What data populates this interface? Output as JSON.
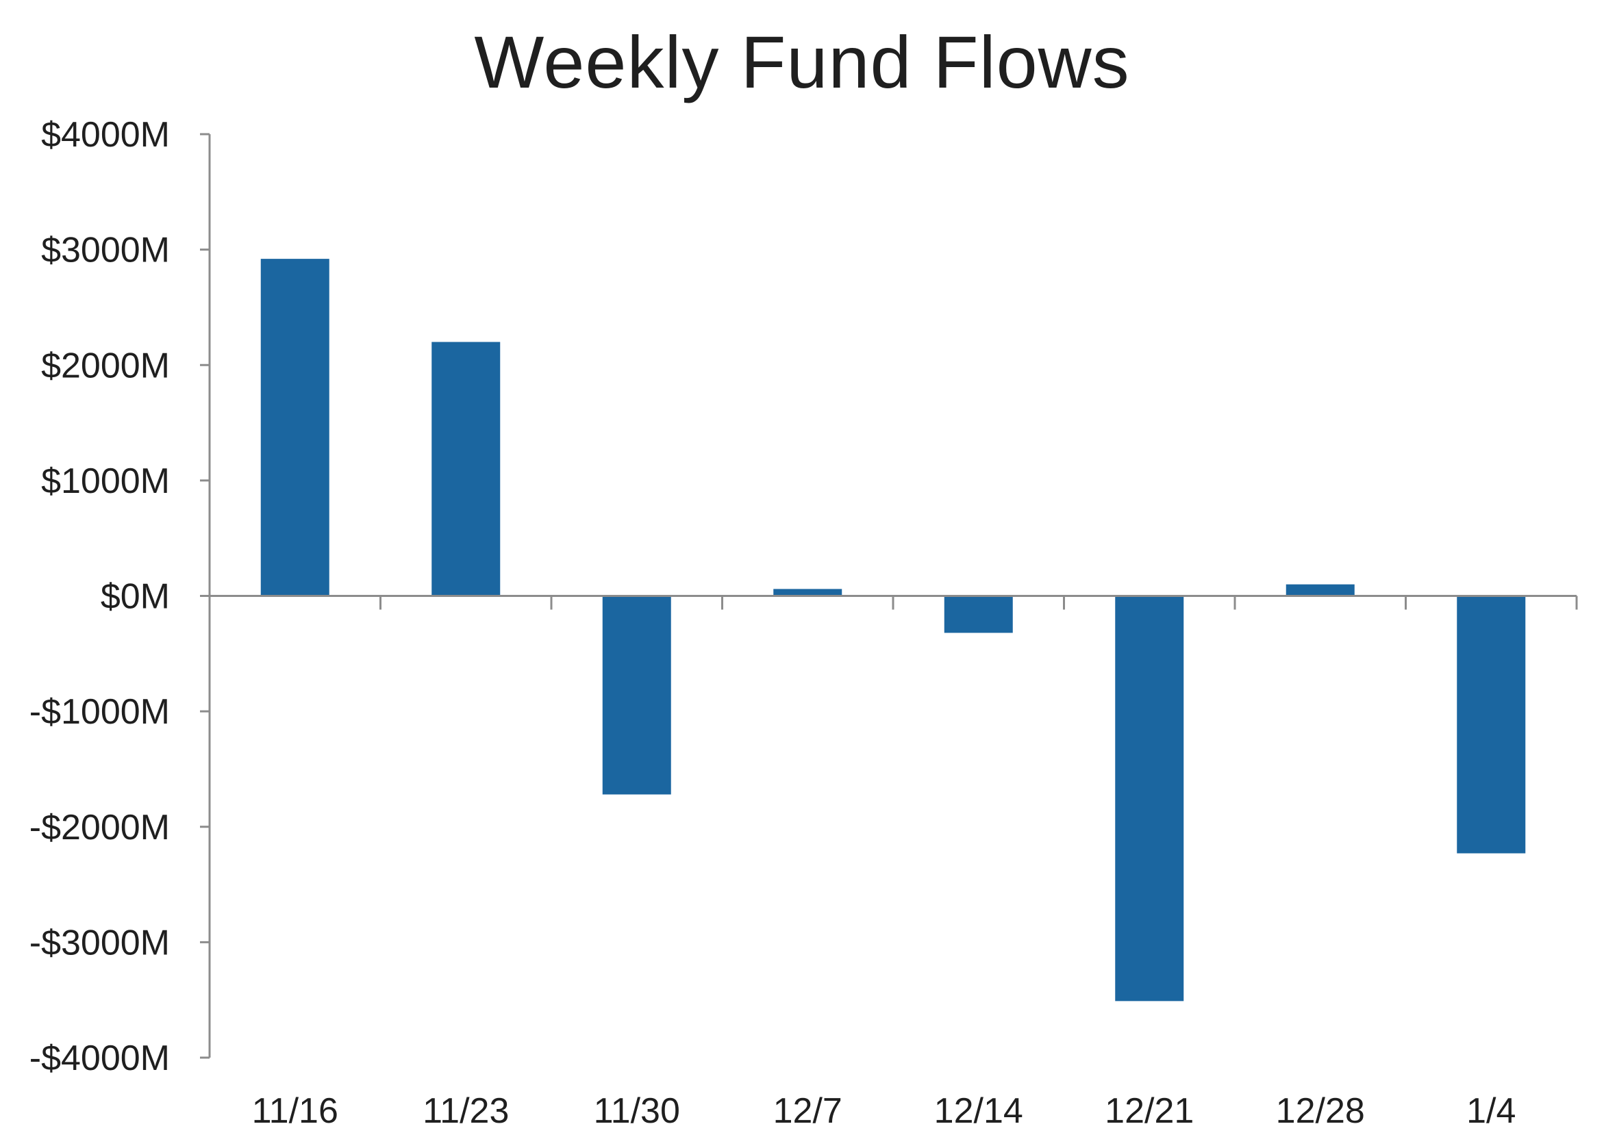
{
  "chart_data": {
    "type": "bar",
    "title": "Weekly Fund Flows",
    "xlabel": "",
    "ylabel": "",
    "categories": [
      "11/16",
      "11/23",
      "11/30",
      "12/7",
      "12/14",
      "12/21",
      "12/28",
      "1/4"
    ],
    "values": [
      2920,
      2200,
      -1720,
      60,
      -320,
      -3510,
      100,
      -2230
    ],
    "unit": "$M",
    "ylim": [
      -4000,
      4000
    ],
    "yticks": [
      4000,
      3000,
      2000,
      1000,
      0,
      -1000,
      -2000,
      -3000,
      -4000
    ],
    "ytick_labels": [
      "$4000M",
      "$3000M",
      "$2000M",
      "$1000M",
      "$0M",
      "-$1000M",
      "-$2000M",
      "-$3000M",
      "-$4000M"
    ],
    "grid": false,
    "legend": "none",
    "colors": {
      "bar": "#1b66a0",
      "axis": "#8c8c8c",
      "text": "#1f1f1f"
    }
  }
}
